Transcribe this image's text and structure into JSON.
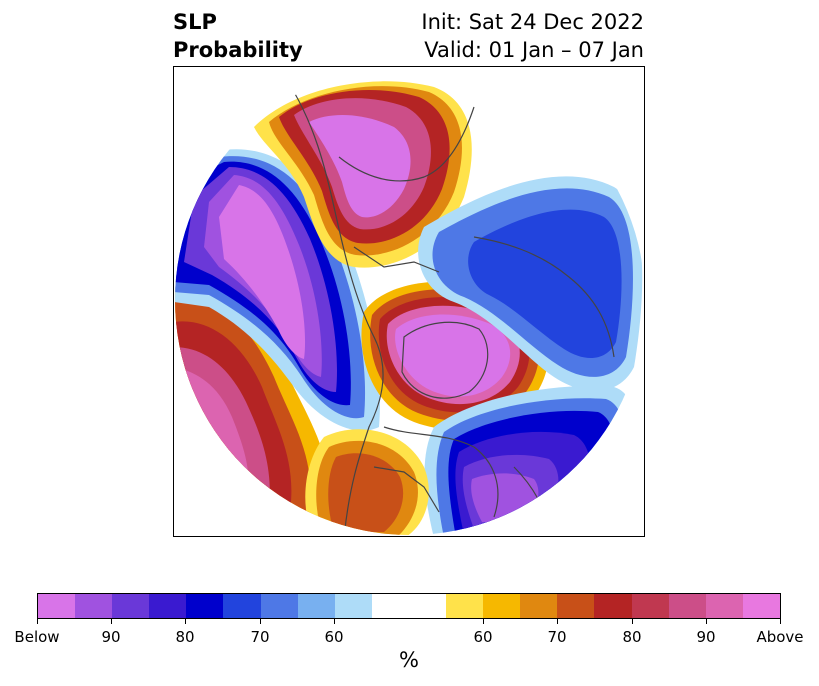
{
  "title": {
    "left_line1": "SLP",
    "left_line2": "Probability",
    "right_line1": "Init: Sat 24 Dec 2022",
    "right_line2": "Valid: 01 Jan – 07 Jan"
  },
  "colorbar": {
    "colors": [
      "#d874e8",
      "#a052e0",
      "#6a38d8",
      "#3a1ad0",
      "#0000cc",
      "#2244dd",
      "#4e78e6",
      "#78b0f0",
      "#aedcf8",
      "#ffffff",
      "#ffe24a",
      "#f6b800",
      "#e08810",
      "#c85018",
      "#b42424",
      "#c03850",
      "#cc4e88",
      "#dc64b0",
      "#e878e0"
    ],
    "tick_labels": [
      "Below",
      "90",
      "80",
      "70",
      "60",
      "60",
      "70",
      "80",
      "90",
      "Above"
    ],
    "unit": "%"
  }
}
